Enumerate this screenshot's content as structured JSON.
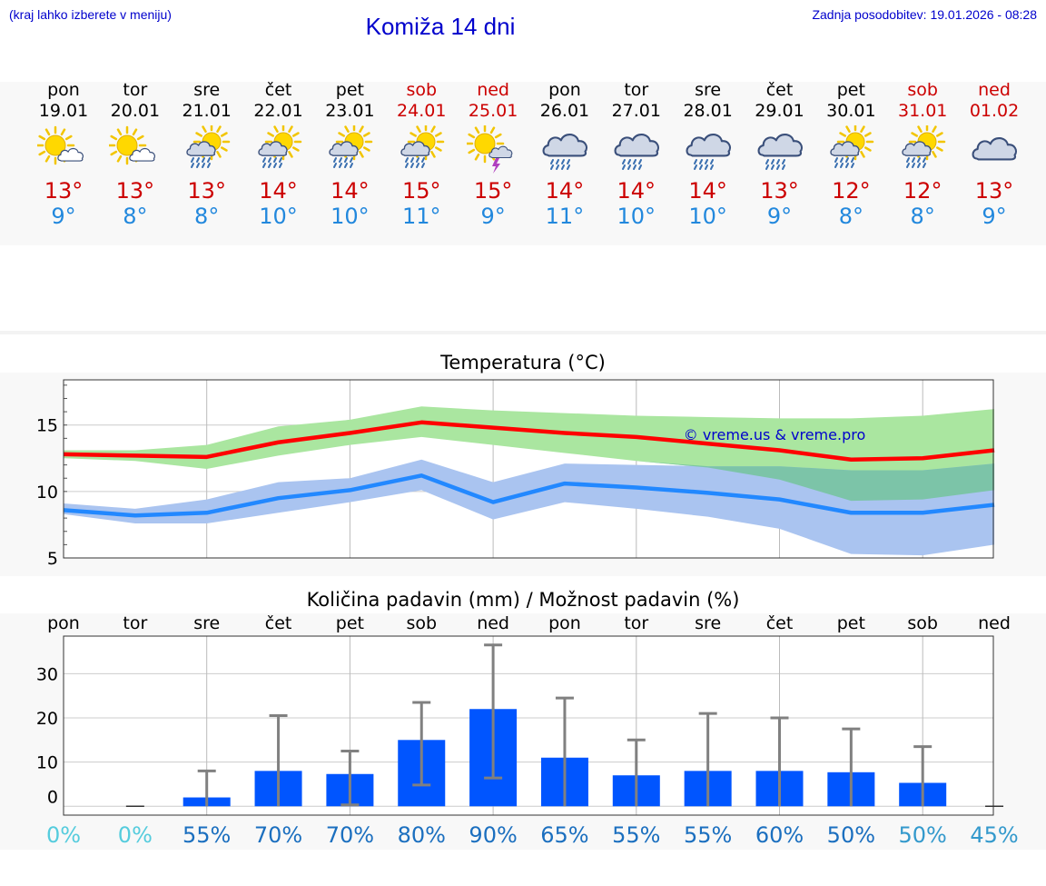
{
  "header": {
    "hint": "(kraj lahko izberete v meniju)",
    "title": "Komiža 14 dni",
    "updated": "Zadnja posodobitev: 19.01.2026 - 08:28"
  },
  "days": [
    {
      "name": "pon",
      "date": "19.01",
      "weekend": false,
      "icon": "sun-cloud-icon",
      "tmax": "13°",
      "tmin": "9°"
    },
    {
      "name": "tor",
      "date": "20.01",
      "weekend": false,
      "icon": "sun-cloud-icon",
      "tmax": "13°",
      "tmin": "8°"
    },
    {
      "name": "sre",
      "date": "21.01",
      "weekend": false,
      "icon": "sun-cloud-rain-icon",
      "tmax": "13°",
      "tmin": "8°"
    },
    {
      "name": "čet",
      "date": "22.01",
      "weekend": false,
      "icon": "sun-cloud-rain-icon",
      "tmax": "14°",
      "tmin": "10°"
    },
    {
      "name": "pet",
      "date": "23.01",
      "weekend": false,
      "icon": "sun-cloud-rain-icon",
      "tmax": "14°",
      "tmin": "10°"
    },
    {
      "name": "sob",
      "date": "24.01",
      "weekend": true,
      "icon": "sun-cloud-rain-icon",
      "tmax": "15°",
      "tmin": "11°"
    },
    {
      "name": "ned",
      "date": "25.01",
      "weekend": true,
      "icon": "sun-thunder-icon",
      "tmax": "15°",
      "tmin": "9°"
    },
    {
      "name": "pon",
      "date": "26.01",
      "weekend": false,
      "icon": "cloud-rain-icon",
      "tmax": "14°",
      "tmin": "11°"
    },
    {
      "name": "tor",
      "date": "27.01",
      "weekend": false,
      "icon": "cloud-rain-icon",
      "tmax": "14°",
      "tmin": "10°"
    },
    {
      "name": "sre",
      "date": "28.01",
      "weekend": false,
      "icon": "cloud-rain-icon",
      "tmax": "14°",
      "tmin": "10°"
    },
    {
      "name": "čet",
      "date": "29.01",
      "weekend": false,
      "icon": "cloud-rain-icon",
      "tmax": "13°",
      "tmin": "9°"
    },
    {
      "name": "pet",
      "date": "30.01",
      "weekend": false,
      "icon": "sun-cloud-rain-icon",
      "tmax": "12°",
      "tmin": "8°"
    },
    {
      "name": "sob",
      "date": "31.01",
      "weekend": true,
      "icon": "sun-cloud-rain-icon",
      "tmax": "12°",
      "tmin": "8°"
    },
    {
      "name": "ned",
      "date": "01.02",
      "weekend": true,
      "icon": "cloud-icon",
      "tmax": "13°",
      "tmin": "9°"
    }
  ],
  "colors": {
    "max_line": "#ff0000",
    "max_band": "#aae6a0",
    "min_line": "#2288ff",
    "min_band": "#aac4f0",
    "overlap_band": "#77c4a0",
    "bar": "#0055ff",
    "whisker": "#808080"
  },
  "chart_data": [
    {
      "type": "line",
      "title": "Temperatura (°C)",
      "watermark": "© vreme.us & vreme.pro",
      "xlabel": "",
      "ylabel": "",
      "ylim": [
        5,
        18.4
      ],
      "yticks": [
        5,
        10,
        15
      ],
      "x": [
        0,
        1,
        2,
        3,
        4,
        5,
        6,
        7,
        8,
        9,
        10,
        11,
        12,
        13
      ],
      "series": [
        {
          "name": "max",
          "values": [
            12.8,
            12.7,
            12.6,
            13.7,
            14.4,
            15.2,
            14.8,
            14.4,
            14.1,
            13.6,
            13.1,
            12.4,
            12.5,
            13.1
          ],
          "band_low": [
            12.5,
            12.3,
            11.7,
            12.7,
            13.5,
            14.1,
            13.5,
            12.9,
            12.3,
            11.8,
            10.9,
            9.3,
            9.4,
            10.1
          ],
          "band_high": [
            13.1,
            13.1,
            13.5,
            14.9,
            15.4,
            16.4,
            16.1,
            15.9,
            15.7,
            15.6,
            15.5,
            15.5,
            15.7,
            16.2
          ]
        },
        {
          "name": "min",
          "values": [
            8.6,
            8.2,
            8.4,
            9.5,
            10.1,
            11.2,
            9.2,
            10.6,
            10.3,
            9.9,
            9.4,
            8.4,
            8.4,
            9.0
          ],
          "band_low": [
            8.3,
            7.6,
            7.6,
            8.4,
            9.2,
            10.1,
            7.9,
            9.2,
            8.7,
            8.1,
            7.2,
            5.3,
            5.2,
            6.0
          ],
          "band_high": [
            9.1,
            8.7,
            9.4,
            10.7,
            11.0,
            12.4,
            10.7,
            12.1,
            12.0,
            11.9,
            11.9,
            11.6,
            11.6,
            12.1
          ]
        }
      ]
    },
    {
      "type": "bar",
      "title": "Količina padavin (mm) / Možnost padavin (%)",
      "xlabel": "",
      "ylabel": "",
      "ylim": [
        -2,
        38.5
      ],
      "yticks": [
        0,
        10,
        20,
        30
      ],
      "categories": [
        "pon",
        "tor",
        "sre",
        "čet",
        "pet",
        "sob",
        "ned",
        "pon",
        "tor",
        "sre",
        "čet",
        "pet",
        "sob",
        "ned"
      ],
      "values": [
        0,
        0,
        2,
        8,
        7.3,
        15,
        22,
        11,
        7,
        8,
        8,
        7.7,
        5.3,
        0
      ],
      "err_low": [
        0,
        0,
        0,
        0,
        0.3,
        4.8,
        6.4,
        0,
        0,
        0,
        0,
        0,
        0,
        0
      ],
      "err_high": [
        0,
        0,
        8,
        20.5,
        12.5,
        23.5,
        36.5,
        24.5,
        15,
        21,
        20,
        17.5,
        13.5,
        0
      ],
      "chance_labels": [
        "0%",
        "0%",
        "55%",
        "70%",
        "70%",
        "80%",
        "90%",
        "65%",
        "55%",
        "55%",
        "60%",
        "50%",
        "50%",
        "45%"
      ],
      "chance_colors": [
        "#55ccdd",
        "#55ccdd",
        "#1b6fbf",
        "#1b6fbf",
        "#1b6fbf",
        "#1b6fbf",
        "#1b6fbf",
        "#1b6fbf",
        "#1b6fbf",
        "#1b6fbf",
        "#1b6fbf",
        "#1b6fbf",
        "#3399cc",
        "#3399cc"
      ]
    }
  ]
}
